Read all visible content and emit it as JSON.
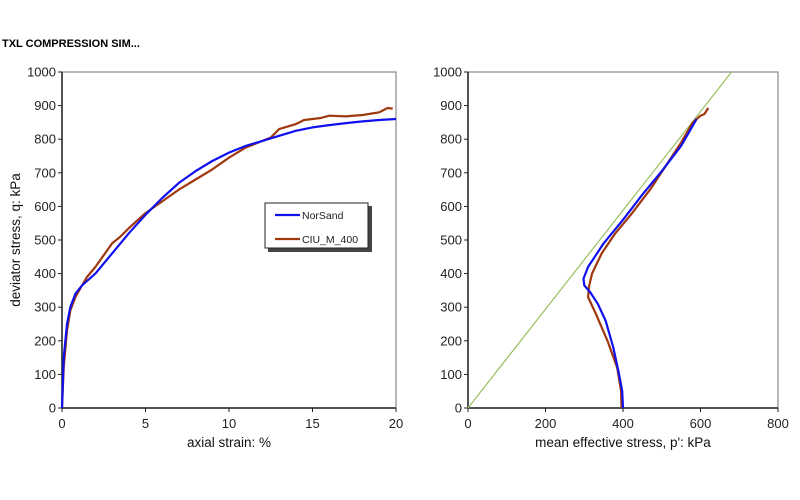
{
  "title": "TXL COMPRESSION SIM...",
  "colors": {
    "NorSand": "#1010ee",
    "CIU_M_400": "#a0380e",
    "csl": "#99c060"
  },
  "chart_data": [
    {
      "type": "line",
      "xlabel": "axial strain: %",
      "ylabel": "deviator stress, q: kPa",
      "xlim": [
        0,
        20
      ],
      "ylim": [
        0,
        1000
      ],
      "xticks": [
        "0",
        "5",
        "10",
        "15",
        "20"
      ],
      "yticks": [
        "0",
        "100",
        "200",
        "300",
        "400",
        "500",
        "600",
        "700",
        "800",
        "900",
        "1000"
      ],
      "grid": false,
      "legend": "center-right",
      "series": [
        {
          "name": "NorSand",
          "x": [
            0,
            0.1,
            0.3,
            0.5,
            0.8,
            1.2,
            2,
            3,
            4,
            5,
            6,
            7,
            8,
            9,
            10,
            11,
            12,
            13,
            14,
            15,
            16,
            17,
            18,
            19,
            20
          ],
          "y": [
            0,
            150,
            250,
            300,
            340,
            365,
            400,
            460,
            520,
            575,
            625,
            670,
            705,
            735,
            760,
            780,
            795,
            810,
            825,
            835,
            842,
            848,
            853,
            857,
            860
          ]
        },
        {
          "name": "CIU_M_400",
          "x": [
            0,
            0.1,
            0.3,
            0.5,
            0.8,
            1.2,
            1.5,
            2,
            2.5,
            3,
            3.5,
            4,
            5,
            6,
            7,
            8,
            9,
            10,
            11,
            12,
            12.5,
            13,
            14,
            14.5,
            15,
            15.5,
            16,
            17,
            18,
            19,
            19.5,
            19.8
          ],
          "y": [
            0,
            120,
            230,
            290,
            330,
            365,
            390,
            420,
            455,
            490,
            510,
            535,
            580,
            615,
            650,
            680,
            710,
            745,
            775,
            795,
            805,
            830,
            845,
            857,
            860,
            863,
            870,
            868,
            872,
            880,
            893,
            891
          ]
        }
      ]
    },
    {
      "type": "line",
      "xlabel": "mean effective stress, p': kPa",
      "ylabel": "",
      "xlim": [
        0,
        800
      ],
      "ylim": [
        0,
        1000
      ],
      "xticks": [
        "0",
        "200",
        "400",
        "600",
        "800"
      ],
      "yticks": [
        "0",
        "100",
        "200",
        "300",
        "400",
        "500",
        "600",
        "700",
        "800",
        "900",
        "1000"
      ],
      "grid": false,
      "series": [
        {
          "name": "NorSand",
          "x": [
            400,
            398,
            390,
            375,
            355,
            335,
            315,
            300,
            298,
            310,
            350,
            400,
            450,
            500,
            550,
            590
          ],
          "y": [
            0,
            50,
            100,
            180,
            260,
            310,
            345,
            365,
            385,
            420,
            490,
            560,
            635,
            705,
            780,
            860
          ]
        },
        {
          "name": "CIU_M_400",
          "x": [
            396,
            395,
            385,
            360,
            330,
            310,
            312,
            320,
            345,
            380,
            420,
            470,
            510,
            550,
            580,
            600,
            610,
            620
          ],
          "y": [
            0,
            50,
            120,
            200,
            280,
            330,
            360,
            400,
            460,
            520,
            575,
            650,
            720,
            790,
            850,
            870,
            875,
            893
          ]
        },
        {
          "x": [
            0,
            680
          ],
          "y": [
            0,
            1000
          ]
        }
      ]
    }
  ]
}
